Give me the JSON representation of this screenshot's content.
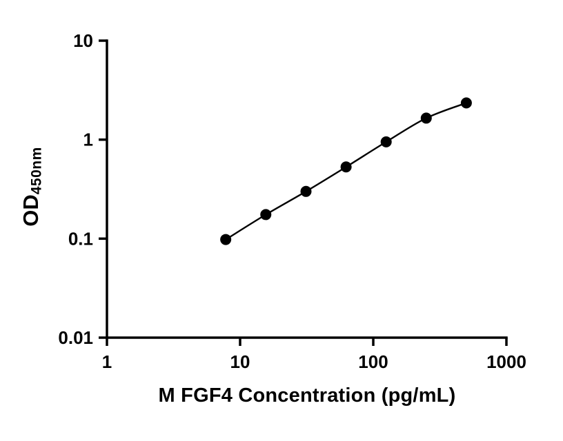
{
  "figure": {
    "background": "#ffffff",
    "axis_color": "#000000",
    "curve_color": "#000000",
    "point_color": "#000000"
  },
  "chart_data": {
    "type": "scatter",
    "subtype": "elisa-standard-curve",
    "title": "",
    "xlabel": "M FGF4 Concentration (pg/mL)",
    "ylabel_main": "OD",
    "ylabel_sub": "450nm",
    "x_scale": "log",
    "y_scale": "log",
    "xlim": [
      1,
      1000
    ],
    "ylim": [
      0.01,
      10
    ],
    "grid": false,
    "legend": false,
    "x_ticks": [
      {
        "value": 1,
        "label": "1"
      },
      {
        "value": 10,
        "label": "10"
      },
      {
        "value": 100,
        "label": "100"
      },
      {
        "value": 1000,
        "label": "1000"
      }
    ],
    "y_ticks": [
      {
        "value": 0.01,
        "label": "0.01"
      },
      {
        "value": 0.1,
        "label": "0.1"
      },
      {
        "value": 1,
        "label": "1"
      },
      {
        "value": 10,
        "label": "10"
      }
    ],
    "series": [
      {
        "name": "standard-curve-points",
        "x": [
          7.8,
          15.6,
          31.25,
          62.5,
          125,
          250,
          500
        ],
        "y": [
          0.098,
          0.175,
          0.3,
          0.53,
          0.95,
          1.65,
          2.35
        ]
      }
    ],
    "curve": "smooth-through-points"
  }
}
